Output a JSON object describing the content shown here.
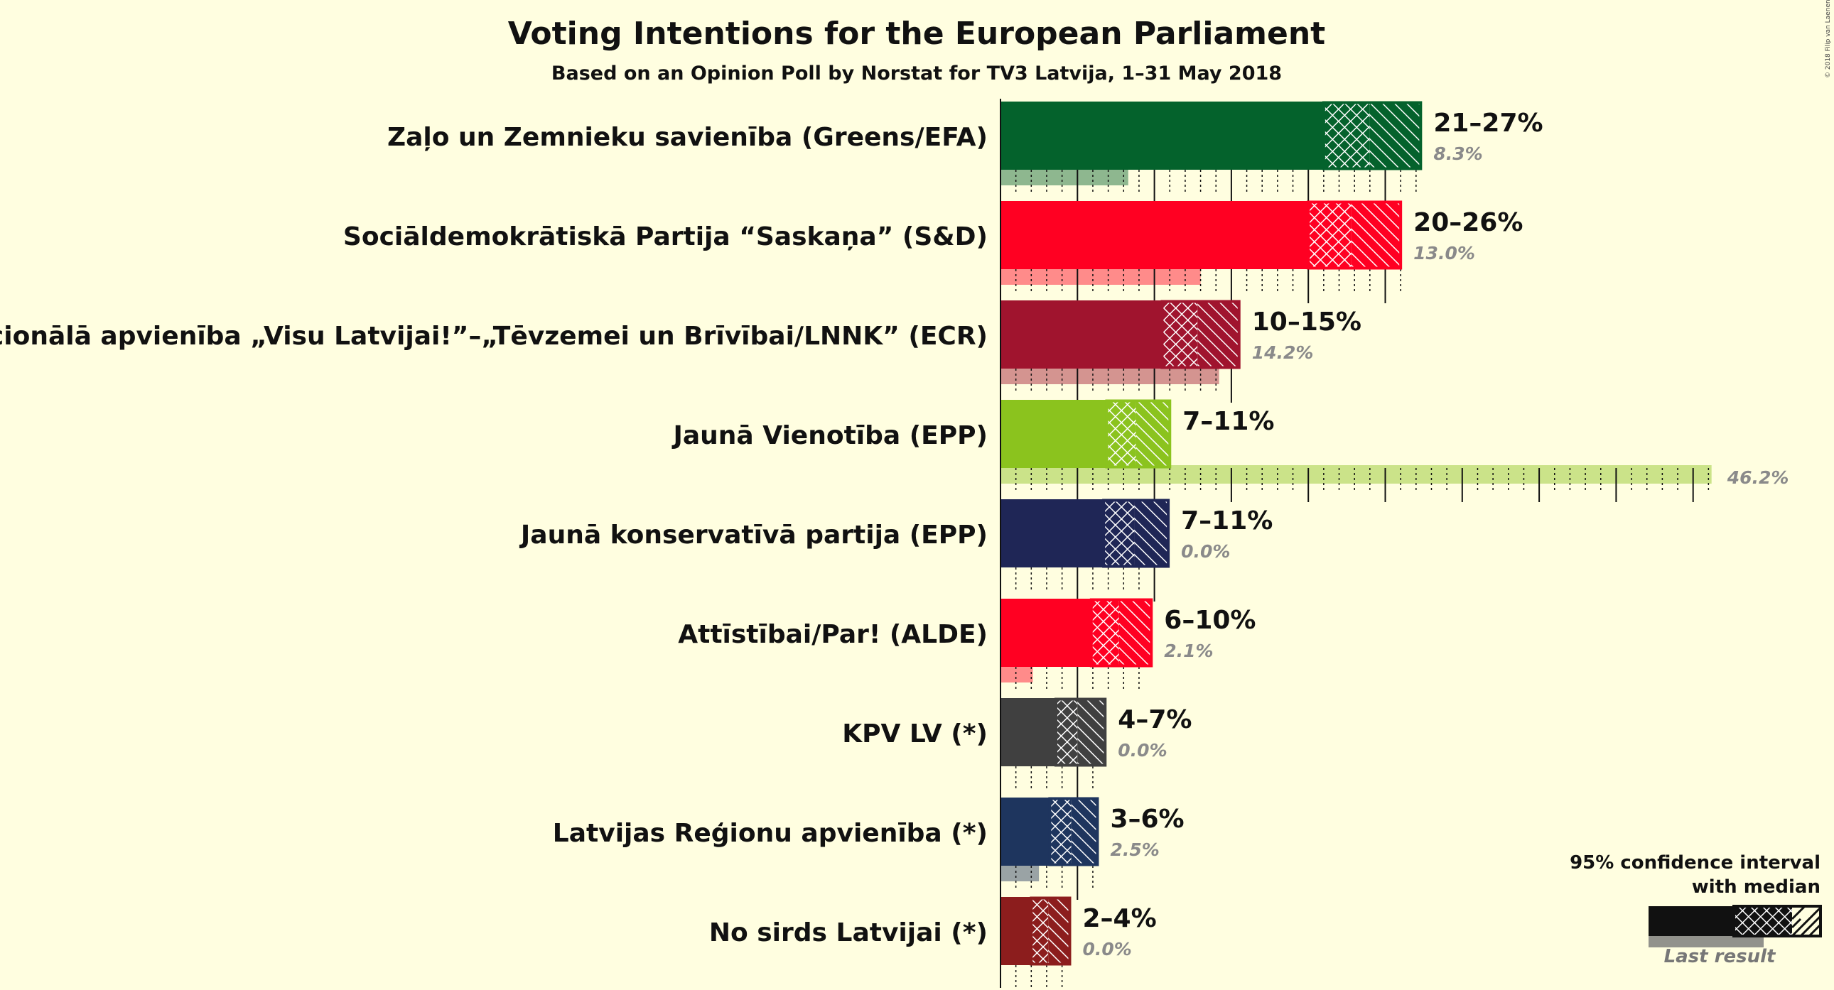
{
  "chart_data": {
    "type": "bar",
    "title": "Voting Intentions for the European Parliament",
    "subtitle": "Based on an Opinion Poll by Norstat for TV3 Latvija, 1–31 May 2018",
    "copyright": "© 2018 Filip van Laenen",
    "legend": {
      "ci_label_line1": "95% confidence interval",
      "ci_label_line2": "with median",
      "last_label": "Last result",
      "placement": "bottom-right"
    },
    "xlim": [
      0,
      46.2
    ],
    "parties": [
      {
        "name": "Zaļo un Zemnieku savienība (Greens/EFA)",
        "color": "#04622c",
        "ci_low": 21.0,
        "median": 24.0,
        "ci_high": 27.3,
        "range_label": "21–27%",
        "last": 8.3,
        "last_label": "8.3%"
      },
      {
        "name": "Sociāldemokrātiskā Partija “Saskaņa” (S&D)",
        "color": "#ff0022",
        "ci_low": 20.0,
        "median": 22.8,
        "ci_high": 26.0,
        "range_label": "20–26%",
        "last": 13.0,
        "last_label": "13.0%"
      },
      {
        "name": "Nacionālā apvienība „Visu Latvijai!”–„Tēvzemei un Brīvībai/LNNK” (ECR)",
        "color": "#a0142e",
        "ci_low": 10.5,
        "median": 12.8,
        "ci_high": 15.5,
        "range_label": "10–15%",
        "last": 14.2,
        "last_label": "14.2%"
      },
      {
        "name": "Jaunā Vienotība (EPP)",
        "color": "#8bc31e",
        "ci_low": 6.9,
        "median": 8.8,
        "ci_high": 11.0,
        "range_label": "7–11%",
        "last": 46.2,
        "last_label": "46.2%"
      },
      {
        "name": "Jaunā konservatīvā partija (EPP)",
        "color": "#1f2656",
        "ci_low": 6.7,
        "median": 8.7,
        "ci_high": 10.9,
        "range_label": "7–11%",
        "last": 0.0,
        "last_label": "0.0%"
      },
      {
        "name": "Attīstībai/Par! (ALDE)",
        "color": "#ff0022",
        "ci_low": 5.9,
        "median": 7.7,
        "ci_high": 9.8,
        "range_label": "6–10%",
        "last": 2.1,
        "last_label": "2.1%"
      },
      {
        "name": "KPV LV (*)",
        "color": "#404040",
        "ci_low": 3.6,
        "median": 5.0,
        "ci_high": 6.8,
        "range_label": "4–7%",
        "last": 0.0,
        "last_label": "0.0%"
      },
      {
        "name": "Latvijas Reģionu apvienība (*)",
        "color": "#1e355e",
        "ci_low": 3.2,
        "median": 4.6,
        "ci_high": 6.3,
        "range_label": "3–6%",
        "last": 2.5,
        "last_label": "2.5%"
      },
      {
        "name": "No sirds Latvijai (*)",
        "color": "#8c1d1d",
        "ci_low": 2.0,
        "median": 3.1,
        "ci_high": 4.5,
        "range_label": "2–4%",
        "last": 0.0,
        "last_label": "0.0%"
      }
    ]
  }
}
